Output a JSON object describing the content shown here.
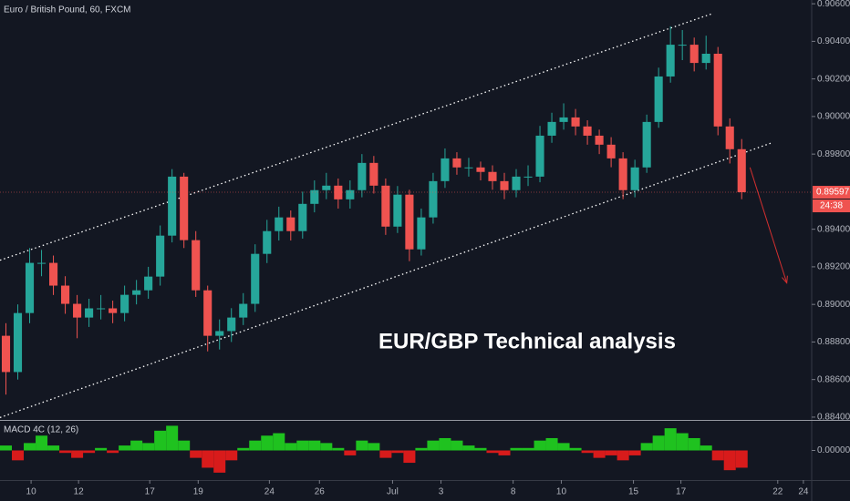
{
  "chart_data": {
    "type": "candlestick",
    "title": "Euro / British Pound, 60, FXCM",
    "x": [
      0.25,
      0.75,
      1.25,
      1.75,
      2.25,
      2.75,
      3.25,
      3.75,
      4.25,
      4.75,
      5.25,
      5.75,
      6.25,
      6.75,
      7.25,
      7.75,
      8.25,
      8.75,
      9.25,
      9.75,
      10.25,
      10.75,
      11.25,
      11.75,
      12.25,
      12.75,
      13.25,
      13.75,
      14.25,
      14.75,
      15.25,
      15.75,
      16.25,
      16.75,
      17.25,
      17.75,
      18.25,
      18.75,
      19.25,
      19.75,
      20.25,
      20.75,
      21.25,
      21.75,
      22.25,
      22.75,
      23.25,
      23.75,
      24.25,
      24.75,
      25.25,
      25.75,
      26.25,
      26.75,
      27.25,
      27.75,
      28.25,
      28.75,
      29.25,
      29.75,
      30.25,
      30.75,
      31.25
    ],
    "open": [
      0.88833,
      0.8864,
      0.88954,
      0.89221,
      0.89221,
      0.891,
      0.89003,
      0.8893,
      0.88979,
      0.88979,
      0.88954,
      0.89051,
      0.89075,
      0.89148,
      0.89366,
      0.8968,
      0.89342,
      0.89075,
      0.88833,
      0.88858,
      0.8893,
      0.89003,
      0.89269,
      0.8939,
      0.89463,
      0.8939,
      0.89535,
      0.89608,
      0.89632,
      0.89559,
      0.89608,
      0.89753,
      0.89632,
      0.89414,
      0.89584,
      0.89293,
      0.89463,
      0.89656,
      0.89777,
      0.89729,
      0.89729,
      0.89705,
      0.89656,
      0.89608,
      0.8968,
      0.8968,
      0.89898,
      0.89971,
      0.89995,
      0.89947,
      0.89898,
      0.8985,
      0.89777,
      0.89608,
      0.89729,
      0.89971,
      0.90213,
      0.90382,
      0.90382,
      0.90285,
      0.90334,
      0.89947,
      0.89826
    ],
    "high": [
      0.889,
      0.89,
      0.893,
      0.8929,
      0.8926,
      0.8915,
      0.8905,
      0.8903,
      0.8905,
      0.8902,
      0.891,
      0.8913,
      0.892,
      0.8942,
      0.8972,
      0.897,
      0.8939,
      0.891,
      0.8892,
      0.8898,
      0.8906,
      0.8932,
      0.8945,
      0.8952,
      0.895,
      0.896,
      0.8966,
      0.897,
      0.8967,
      0.8966,
      0.898,
      0.8979,
      0.8967,
      0.8963,
      0.8961,
      0.8951,
      0.897,
      0.8983,
      0.8981,
      0.8978,
      0.8976,
      0.8974,
      0.897,
      0.8972,
      0.8974,
      0.8995,
      0.9002,
      0.9007,
      0.9004,
      0.8998,
      0.8993,
      0.8989,
      0.8981,
      0.8977,
      0.9001,
      0.9026,
      0.9048,
      0.9046,
      0.9042,
      0.9043,
      0.9037,
      0.8999,
      0.8988
    ],
    "low": [
      0.8852,
      0.886,
      0.889,
      0.8915,
      0.8905,
      0.8895,
      0.8882,
      0.8888,
      0.8892,
      0.889,
      0.8891,
      0.89,
      0.8903,
      0.891,
      0.8933,
      0.893,
      0.8904,
      0.8875,
      0.8876,
      0.888,
      0.8889,
      0.8896,
      0.8922,
      0.8934,
      0.8934,
      0.8935,
      0.8949,
      0.8956,
      0.8951,
      0.8951,
      0.8957,
      0.8959,
      0.8937,
      0.8938,
      0.8923,
      0.8926,
      0.8943,
      0.8962,
      0.8969,
      0.8968,
      0.8966,
      0.8961,
      0.8956,
      0.8957,
      0.8963,
      0.8965,
      0.8986,
      0.8993,
      0.899,
      0.8985,
      0.898,
      0.8973,
      0.8956,
      0.8957,
      0.897,
      0.8994,
      0.9018,
      0.903,
      0.9024,
      0.9025,
      0.899,
      0.8975,
      0.8956
    ],
    "close": [
      0.8864,
      0.88954,
      0.89221,
      0.89221,
      0.891,
      0.89003,
      0.8893,
      0.88979,
      0.88979,
      0.88954,
      0.89051,
      0.89075,
      0.89148,
      0.89366,
      0.8968,
      0.89342,
      0.89075,
      0.88833,
      0.88858,
      0.8893,
      0.89003,
      0.89269,
      0.8939,
      0.89463,
      0.8939,
      0.89535,
      0.89608,
      0.89632,
      0.89559,
      0.89608,
      0.89753,
      0.89632,
      0.89414,
      0.89584,
      0.89293,
      0.89463,
      0.89656,
      0.89777,
      0.89729,
      0.89729,
      0.89705,
      0.89656,
      0.89608,
      0.8968,
      0.8968,
      0.89898,
      0.89971,
      0.89995,
      0.89947,
      0.89898,
      0.8985,
      0.89777,
      0.89608,
      0.89729,
      0.89971,
      0.90213,
      0.90382,
      0.90382,
      0.90285,
      0.90334,
      0.89947,
      0.89826,
      0.89597
    ],
    "up_color": "#26a69a",
    "down_color": "#ef5350",
    "xlim": [
      0,
      34.2
    ],
    "xticks": [
      {
        "value": 1.31,
        "label": "10"
      },
      {
        "value": 3.31,
        "label": "12"
      },
      {
        "value": 6.31,
        "label": "17"
      },
      {
        "value": 8.35,
        "label": "19"
      },
      {
        "value": 11.35,
        "label": "24"
      },
      {
        "value": 13.46,
        "label": "26"
      },
      {
        "value": 16.54,
        "label": "Jul"
      },
      {
        "value": 18.58,
        "label": "3"
      },
      {
        "value": 21.62,
        "label": "8"
      },
      {
        "value": 23.65,
        "label": "10"
      },
      {
        "value": 26.69,
        "label": "15"
      },
      {
        "value": 28.69,
        "label": "17"
      },
      {
        "value": 32.77,
        "label": "22"
      },
      {
        "value": 33.85,
        "label": "24"
      }
    ],
    "ylim": [
      0.8839,
      0.9062
    ],
    "yticks": [
      {
        "value": 0.906,
        "label": "0.90600"
      },
      {
        "value": 0.904,
        "label": "0.90400"
      },
      {
        "value": 0.902,
        "label": "0.90200"
      },
      {
        "value": 0.9,
        "label": "0.90000"
      },
      {
        "value": 0.898,
        "label": "0.89800"
      },
      {
        "value": 0.894,
        "label": "0.89400"
      },
      {
        "value": 0.892,
        "label": "0.89200"
      },
      {
        "value": 0.89,
        "label": "0.89000"
      },
      {
        "value": 0.888,
        "label": "0.88800"
      },
      {
        "value": 0.886,
        "label": "0.88600"
      },
      {
        "value": 0.884,
        "label": "0.88400"
      }
    ],
    "last_price": {
      "value": 0.89597,
      "label": "0.89597"
    },
    "countdown": "24:38",
    "channel": [
      {
        "x": [
          0,
          30
        ],
        "values": [
          0.89235,
          0.90547
        ]
      },
      {
        "x": [
          0,
          32.5
        ],
        "values": [
          0.88398,
          0.89859
        ]
      }
    ],
    "channel_color": "#ffffff",
    "arrow": {
      "x": [
        31.6,
        33.15
      ],
      "values": [
        0.89729,
        0.89114
      ],
      "color": "#d32f2f"
    },
    "annotation": "EUR/GBP Technical analysis",
    "indicator": {
      "type": "bar",
      "title": "MACD 4C (12, 26)",
      "values": [
        0.0002,
        -0.0004,
        0.0003,
        0.0006,
        0.0002,
        -0.0001,
        -0.0003,
        -0.0001,
        0.0001,
        -0.0001,
        0.0002,
        0.0004,
        0.0003,
        0.0008,
        0.001,
        0.0004,
        -0.0003,
        -0.0007,
        -0.0009,
        -0.0004,
        0.0001,
        0.0004,
        0.0006,
        0.0007,
        0.0003,
        0.0004,
        0.0004,
        0.0003,
        0.0001,
        -0.0002,
        0.0004,
        0.0003,
        -0.0003,
        -0.0001,
        -0.0005,
        0.0001,
        0.0004,
        0.0005,
        0.0004,
        0.0002,
        0.0001,
        -0.0001,
        -0.0002,
        0.0001,
        0.0001,
        0.0004,
        0.0005,
        0.0003,
        0.0001,
        -0.0001,
        -0.0003,
        -0.0002,
        -0.0004,
        -0.0002,
        0.0003,
        0.0006,
        0.0009,
        0.0007,
        0.0005,
        0.0002,
        -0.0004,
        -0.0008,
        -0.0007
      ],
      "ylim": [
        -0.0012,
        0.0012
      ],
      "yticks": [
        {
          "value": 0,
          "label": "0.00000"
        }
      ],
      "positive_color": "#1fc21f",
      "negative_color": "#d81b1b"
    }
  }
}
